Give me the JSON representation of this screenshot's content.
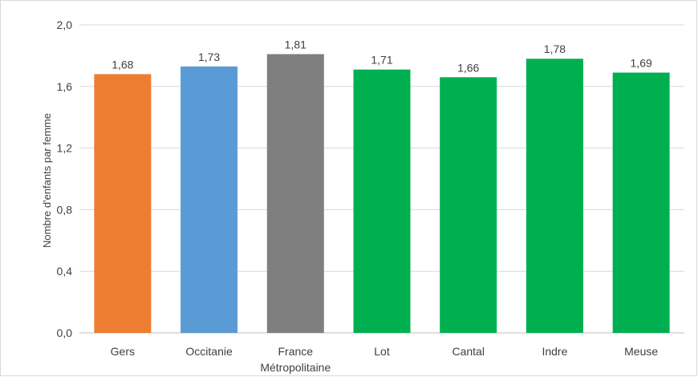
{
  "chart_data": {
    "type": "bar",
    "title": "",
    "xlabel": "",
    "ylabel": "Nombre d'enfants par femme",
    "ylim": [
      0,
      2.0
    ],
    "yticks": [
      "0,0",
      "0,4",
      "0,8",
      "1,2",
      "1,6",
      "2,0"
    ],
    "ytick_values": [
      0,
      0.4,
      0.8,
      1.2,
      1.6,
      2.0
    ],
    "categories": [
      [
        "Gers"
      ],
      [
        "Occitanie"
      ],
      [
        "France",
        "Métropolitaine"
      ],
      [
        "Lot"
      ],
      [
        "Cantal"
      ],
      [
        "Indre"
      ],
      [
        "Meuse"
      ]
    ],
    "values": [
      1.68,
      1.73,
      1.81,
      1.71,
      1.66,
      1.78,
      1.69
    ],
    "value_labels": [
      "1,68",
      "1,73",
      "1,81",
      "1,71",
      "1,66",
      "1,78",
      "1,69"
    ],
    "colors": [
      "#ed7d31",
      "#5b9bd5",
      "#7f7f7f",
      "#00b050",
      "#00b050",
      "#00b050",
      "#00b050"
    ],
    "grid": true,
    "legend": "none"
  }
}
